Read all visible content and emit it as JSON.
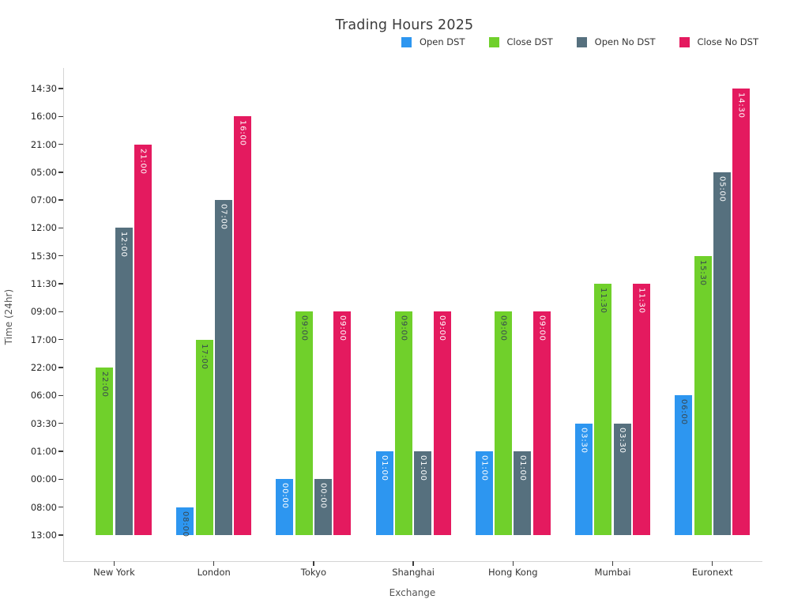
{
  "title": "Trading Hours 2025",
  "axes": {
    "y_label": "Time (24hr)",
    "x_label": "Exchange"
  },
  "colors": {
    "open_dst": "#2d96f0",
    "close_dst": "#70d02b",
    "open_no_dst": "#56707e",
    "close_no_dst": "#e41a5f",
    "dark_label": "#37474f",
    "light_label": "#ffffff",
    "tick_mark": "#3c3c3c",
    "axis_line": "#d4d4d4"
  },
  "chart_data": {
    "type": "bar",
    "title": "Trading Hours 2025",
    "xlabel": "Exchange",
    "ylabel": "Time (24hr)",
    "grid": false,
    "legend_position": "top-right",
    "categories": [
      "New York",
      "London",
      "Tokyo",
      "Shanghai",
      "Hong Kong",
      "Mumbai",
      "Euronext"
    ],
    "y_axis_levels_bottom_to_top": [
      "13:00",
      "08:00",
      "00:00",
      "01:00",
      "03:30",
      "06:00",
      "22:00",
      "17:00",
      "09:00",
      "11:30",
      "15:30",
      "12:00",
      "07:00",
      "05:00",
      "21:00",
      "16:00",
      "14:30"
    ],
    "series": [
      {
        "name": "Open DST",
        "color_key": "open_dst",
        "values": [
          "13:00",
          "08:00",
          "00:00",
          "01:00",
          "01:00",
          "03:30",
          "06:00"
        ],
        "label_style": [
          "none",
          "dark",
          "light",
          "light",
          "light",
          "light",
          "dark"
        ]
      },
      {
        "name": "Close DST",
        "color_key": "close_dst",
        "values": [
          "22:00",
          "17:00",
          "09:00",
          "09:00",
          "09:00",
          "11:30",
          "15:30"
        ],
        "label_style": [
          "dark",
          "dark",
          "dark",
          "dark",
          "dark",
          "dark",
          "dark"
        ]
      },
      {
        "name": "Open No DST",
        "color_key": "open_no_dst",
        "values": [
          "12:00",
          "07:00",
          "00:00",
          "01:00",
          "01:00",
          "03:30",
          "05:00"
        ],
        "label_style": [
          "light",
          "light",
          "light",
          "light",
          "light",
          "light",
          "light"
        ]
      },
      {
        "name": "Close No DST",
        "color_key": "close_no_dst",
        "values": [
          "21:00",
          "16:00",
          "09:00",
          "09:00",
          "09:00",
          "11:30",
          "14:30"
        ],
        "label_style": [
          "light",
          "light",
          "light",
          "light",
          "light",
          "light",
          "light"
        ]
      }
    ]
  }
}
